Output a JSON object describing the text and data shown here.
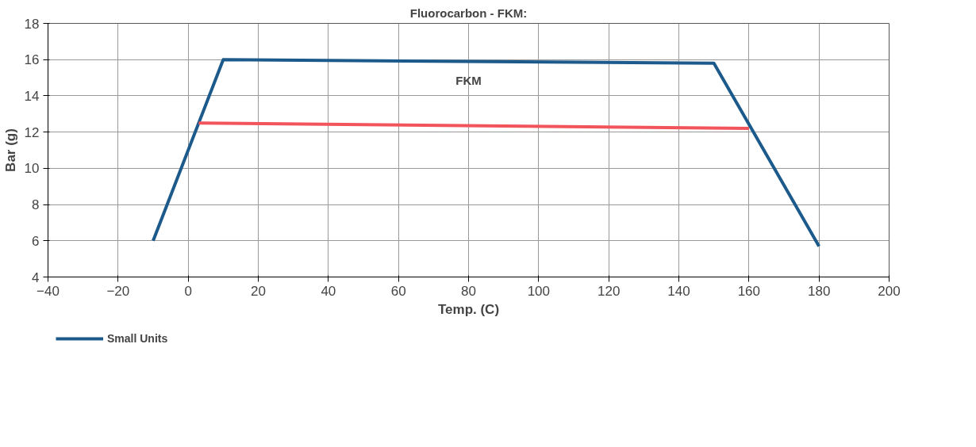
{
  "chart_data": {
    "type": "line",
    "title": "Fluorocarbon - FKM:",
    "xlabel": "Temp. (C)",
    "ylabel": "Bar (g)",
    "xlim": [
      -40,
      200
    ],
    "xticks": [
      -40,
      -20,
      0,
      20,
      40,
      60,
      80,
      100,
      120,
      140,
      160,
      180,
      200
    ],
    "ylim": [
      4,
      18
    ],
    "yticks": [
      4,
      6,
      8,
      10,
      12,
      14,
      16,
      18
    ],
    "grid": true,
    "legend": "bottom",
    "marker": "none",
    "line_style": "solid",
    "annotations": [
      "FKM"
    ],
    "series": [
      {
        "name": "Small Units",
        "color": "#1d5a8c",
        "x": [
          -10,
          10,
          150,
          180
        ],
        "values": [
          6,
          16,
          15.8,
          5.7
        ]
      },
      {
        "color": "#f2545b",
        "x": [
          3,
          160
        ],
        "values": [
          12.5,
          12.2
        ]
      }
    ]
  }
}
